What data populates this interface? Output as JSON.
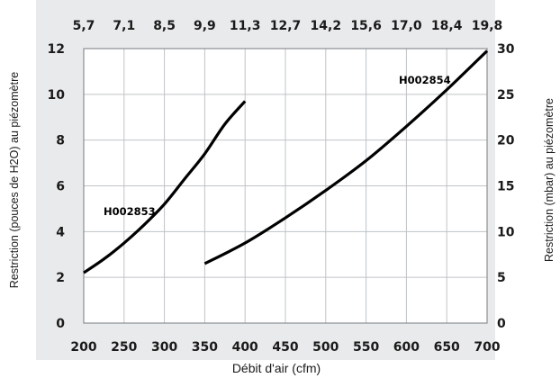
{
  "colors": {
    "background": "#ffffff",
    "panel": "#e9eaeb",
    "plot": "#ffffff",
    "grid": "#bfc3c6",
    "border": "#8c8f92",
    "line": "#000000",
    "text": "#1a1a1a"
  },
  "chart_data": {
    "type": "line",
    "title": "",
    "xlabel": "Débit d'air (cfm)",
    "ylabel_left": "Restriction (pouces de H2O) au piézomètre",
    "ylabel_right": "Restriction (mbar) au piézomètre",
    "xlim": [
      200,
      700
    ],
    "ylim_left": [
      0,
      12
    ],
    "ylim_right": [
      0,
      30
    ],
    "grid": true,
    "x_ticks": [
      "200",
      "250",
      "300",
      "350",
      "400",
      "450",
      "500",
      "550",
      "600",
      "650",
      "700"
    ],
    "x_ticks_top": [
      "5,7",
      "7,1",
      "8,5",
      "9,9",
      "11,3",
      "12,7",
      "14,2",
      "15,6",
      "17,0",
      "18,4",
      "19,8"
    ],
    "y_ticks_left": [
      "0",
      "2",
      "4",
      "6",
      "8",
      "10",
      "12"
    ],
    "y_ticks_right": [
      "0",
      "5",
      "10",
      "15",
      "20",
      "25",
      "30"
    ],
    "series": [
      {
        "name": "H002853",
        "x": [
          200,
          225,
          250,
          275,
          300,
          325,
          350,
          375,
          400
        ],
        "y": [
          2.2,
          2.8,
          3.5,
          4.3,
          5.2,
          6.3,
          7.4,
          8.7,
          9.7
        ]
      },
      {
        "name": "H002854",
        "x": [
          350,
          400,
          450,
          500,
          550,
          600,
          650,
          700
        ],
        "y": [
          2.6,
          3.5,
          4.6,
          5.8,
          7.1,
          8.6,
          10.2,
          11.9
        ]
      }
    ]
  }
}
